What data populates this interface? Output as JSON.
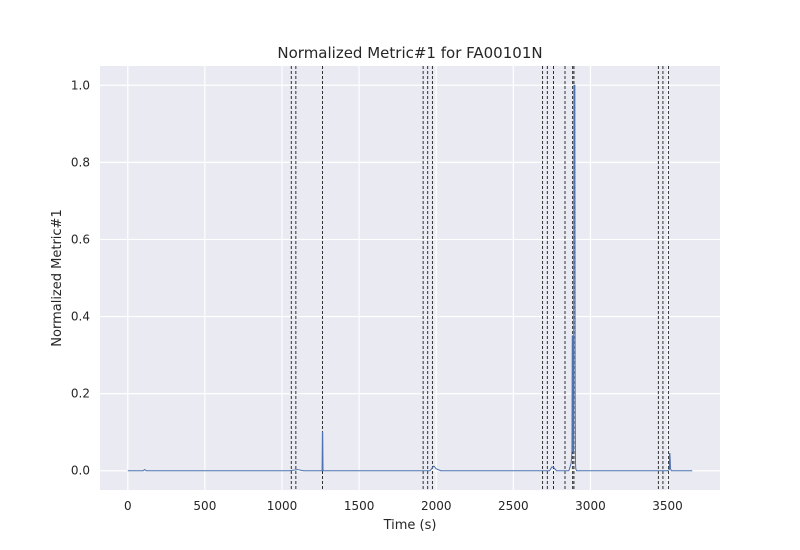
{
  "chart_data": {
    "type": "line",
    "title": "Normalized Metric#1 for FA00101N",
    "xlabel": "Time (s)",
    "ylabel": "Normalized Metric#1",
    "xlim": [
      -180,
      3840
    ],
    "ylim": [
      -0.05,
      1.05
    ],
    "xticks": [
      0,
      500,
      1000,
      1500,
      2000,
      2500,
      3000,
      3500
    ],
    "xtick_labels": [
      "0",
      "500",
      "1000",
      "1500",
      "2000",
      "2500",
      "3000",
      "3500"
    ],
    "yticks": [
      0.0,
      0.2,
      0.4,
      0.6,
      0.8,
      1.0
    ],
    "ytick_labels": [
      "0.0",
      "0.2",
      "0.4",
      "0.6",
      "0.8",
      "1.0"
    ],
    "grid": true,
    "style": "seaborn-darkgrid",
    "colors": {
      "background": "#eaeaf2",
      "grid": "#ffffff",
      "line": "#4c72b0",
      "vline": "#000000"
    },
    "series": [
      {
        "x": [
          0,
          100,
          110,
          120,
          200,
          1000,
          1050,
          1100,
          1140,
          1250,
          1260,
          1262,
          1264,
          1266,
          1270,
          1900,
          1960,
          1975,
          1985,
          2000,
          2030,
          2700,
          2735,
          2750,
          2762,
          2780,
          2860,
          2875,
          2880,
          2882,
          2885,
          2887,
          2889,
          2891,
          2893,
          2895,
          2897,
          2899,
          2901,
          2903,
          2905,
          2910,
          2930,
          3000,
          3500,
          3512,
          3513,
          3515,
          3517,
          3519,
          3525,
          3540,
          3660
        ],
        "y": [
          0.0,
          0.0,
          0.003,
          0.0,
          0.0,
          0.0,
          0.0,
          0.003,
          0.0,
          0.0,
          0.0,
          0.1,
          0.1,
          0.0,
          0.0,
          0.0,
          0.0,
          0.008,
          0.012,
          0.005,
          0.0,
          0.0,
          0.0,
          0.01,
          0.008,
          0.0,
          0.0,
          0.02,
          0.05,
          0.35,
          0.35,
          0.05,
          0.35,
          0.05,
          1.0,
          1.0,
          1.0,
          1.0,
          0.2,
          0.02,
          0.005,
          0.0,
          0.0,
          0.0,
          0.0,
          0.003,
          0.045,
          0.045,
          0.03,
          0.005,
          0.0,
          0.0,
          0.0
        ]
      }
    ],
    "vlines": [
      1060,
      1090,
      1262,
      1915,
      1945,
      1975,
      2690,
      2720,
      2760,
      2835,
      2885,
      2893,
      3440,
      3470,
      3505
    ]
  }
}
